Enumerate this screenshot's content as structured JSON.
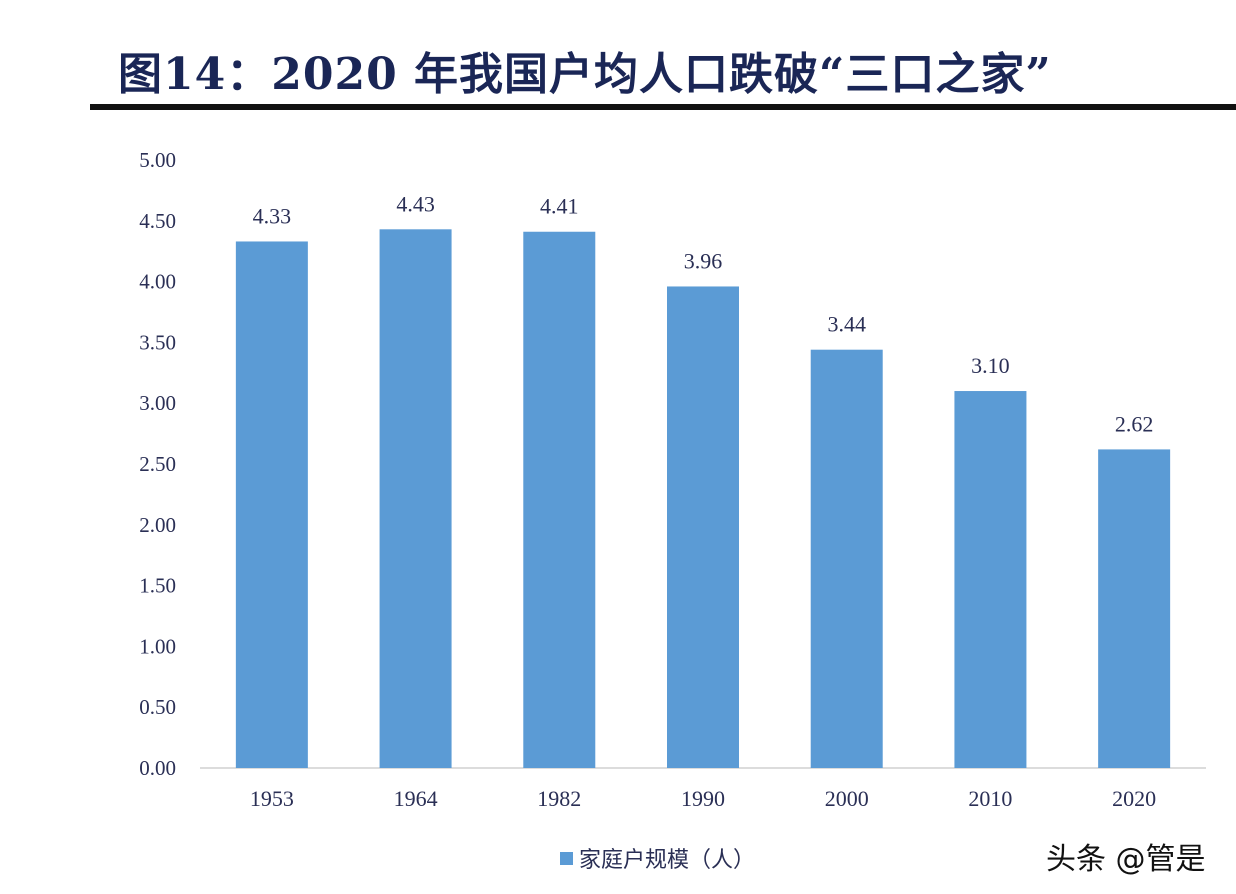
{
  "title": "图14：2020 年我国户均人口跌破“三口之家”",
  "watermark": "头条 @管是",
  "chart_data": {
    "type": "bar",
    "title": "图14：2020 年我国户均人口跌破“三口之家”",
    "categories": [
      "1953",
      "1964",
      "1982",
      "1990",
      "2000",
      "2010",
      "2020"
    ],
    "series": [
      {
        "name": "家庭户规模（人）",
        "values": [
          4.33,
          4.43,
          4.41,
          3.96,
          3.44,
          3.1,
          2.62
        ],
        "color": "#5b9bd5"
      }
    ],
    "data_labels": [
      "4.33",
      "4.43",
      "4.41",
      "3.96",
      "3.44",
      "3.10",
      "2.62"
    ],
    "ylim": [
      0,
      5
    ],
    "yticks": [
      "0.00",
      "0.50",
      "1.00",
      "1.50",
      "2.00",
      "2.50",
      "3.00",
      "3.50",
      "4.00",
      "4.50",
      "5.00"
    ],
    "grid": false,
    "legend": "bottom"
  }
}
